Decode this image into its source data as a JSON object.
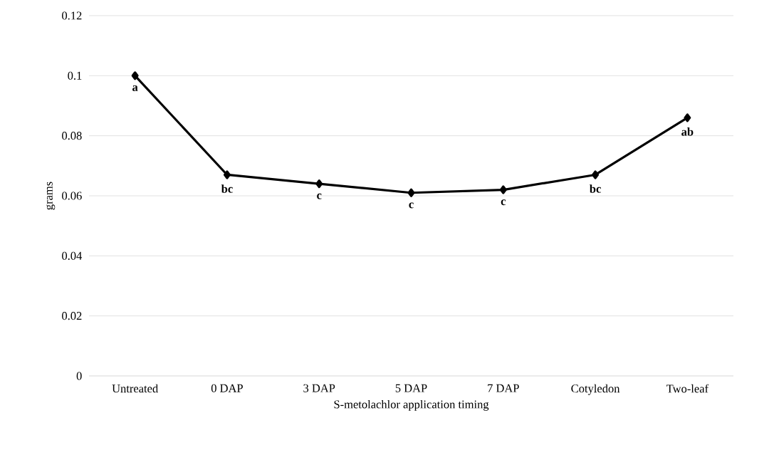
{
  "chart_data": {
    "type": "line",
    "xlabel": "S-metolachlor application timing",
    "ylabel": "grams",
    "categories": [
      "Untreated",
      "0 DAP",
      "3 DAP",
      "5 DAP",
      "7 DAP",
      "Cotyledon",
      "Two-leaf"
    ],
    "values": [
      0.1,
      0.067,
      0.064,
      0.061,
      0.062,
      0.067,
      0.086
    ],
    "color": "#000000",
    "ylim": [
      0,
      0.12
    ],
    "yticks": [
      0,
      0.02,
      0.04,
      0.06,
      0.08,
      {
        "value": 0.1,
        "label": "0.1"
      },
      0.12
    ],
    "grid": "y",
    "marker": "diamond",
    "line_style": "solid",
    "annotations": [
      {
        "text": "a",
        "x": "Untreated",
        "y": 0.1
      },
      {
        "text": "bc",
        "x": "0 DAP",
        "y": 0.067
      },
      {
        "text": "c",
        "x": "3 DAP",
        "y": 0.064
      },
      {
        "text": "c",
        "x": "5 DAP",
        "y": 0.061
      },
      {
        "text": "c",
        "x": "7 DAP",
        "y": 0.062
      },
      {
        "text": "bc",
        "x": "Cotyledon",
        "y": 0.067
      },
      {
        "text": "ab",
        "x": "Two-leaf",
        "y": 0.086
      }
    ]
  }
}
